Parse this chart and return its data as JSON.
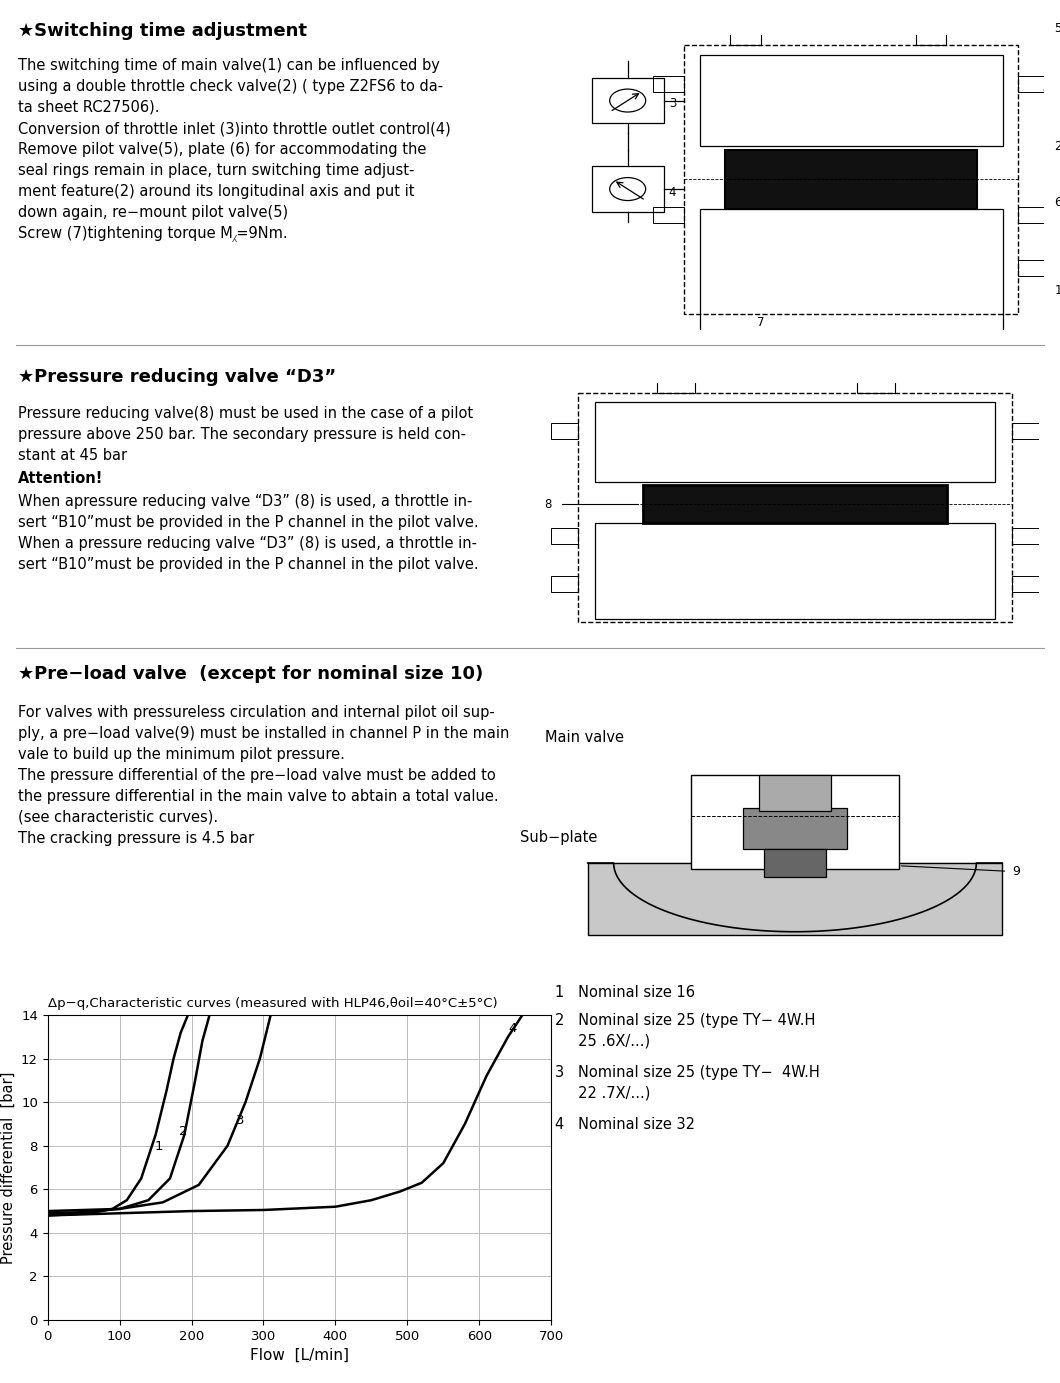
{
  "background_color": "#ffffff",
  "text_color": "#000000",
  "separator_color": "#999999",
  "curve_color": "#000000",
  "grid_color": "#bbbbbb",
  "section1_title": "★Switching time adjustment",
  "section1_body": [
    "The switching time of main valve(1) can be influenced by",
    "using a double throttle check valve(2) ( type Z2FS6 to da-",
    "ta sheet RC27506).",
    "Conversion of throttle inlet (3)into throttle outlet control(4)",
    "Remove pilot valve(5), plate (6) for accommodating the",
    "seal rings remain in place, turn switching time adjust-",
    "ment feature(2) around its longitudinal axis and put it",
    "down again, re−mount pilot valve(5)",
    "Screw (7)tightening torque M⁁=9Nm."
  ],
  "section2_title": "★Pressure reducing valve “D3”",
  "section2_body": [
    "Pressure reducing valve(8) must be used in the case of a pilot",
    "pressure above 250 bar. The secondary pressure is held con-",
    "stant at 45 bar"
  ],
  "section2_attention": "Attention!",
  "section2_attention_body": [
    "When apressure reducing valve “D3” (8) is used, a throttle in-",
    "sert “B10”must be provided in the P channel in the pilot valve.",
    "When a pressure reducing valve “D3” (8) is used, a throttle in-",
    "sert “B10”must be provided in the P channel in the pilot valve."
  ],
  "section3_title": "★Pre−load valve  (except for nominal size 10)",
  "section3_body": [
    "For valves with pressureless circulation and internal pilot oil sup-",
    "ply, a pre−load valve(9) must be installed in channel P in the main",
    "vale to build up the minimum pilot pressure.",
    "The pressure differential of the pre−load valve must be added to",
    "the pressure differential in the main valve to abtain a total value.",
    "(see characteristic curves).",
    "The cracking pressure is 4.5 bar"
  ],
  "chart_title": "Δp−q,Characteristic curves (measured with HLP46,θoil=40°C±5°C)",
  "xlabel": "Flow  [L/min]",
  "ylabel": "Pressure differential  [bar]",
  "xlim": [
    0,
    700
  ],
  "ylim": [
    0,
    14
  ],
  "xticks": [
    0,
    100,
    200,
    300,
    400,
    500,
    600,
    700
  ],
  "yticks": [
    0,
    2,
    4,
    6,
    8,
    10,
    12,
    14
  ],
  "legend_line1": "1   Nominal size 16",
  "legend_line2a": "2   Nominal size 25 (type TY− 4W.H",
  "legend_line2b": "     25 .6X/...)",
  "legend_line3a": "3   Nominal size 25 (type TY−  4W.H",
  "legend_line3b": "     22 .7X/...)",
  "legend_line4": "4   Nominal size 32",
  "curve1_x": [
    0,
    30,
    60,
    90,
    110,
    130,
    150,
    165,
    175,
    185,
    195
  ],
  "curve1_y": [
    4.8,
    4.85,
    4.9,
    5.1,
    5.5,
    6.5,
    8.5,
    10.5,
    12.0,
    13.2,
    14.0
  ],
  "curve2_x": [
    0,
    50,
    100,
    140,
    170,
    190,
    205,
    215,
    225
  ],
  "curve2_y": [
    4.9,
    4.95,
    5.1,
    5.5,
    6.5,
    8.5,
    11.0,
    12.8,
    14.0
  ],
  "curve3_x": [
    0,
    100,
    160,
    210,
    250,
    275,
    295,
    310
  ],
  "curve3_y": [
    5.0,
    5.1,
    5.4,
    6.2,
    8.0,
    10.0,
    12.0,
    14.0
  ],
  "curve4_x": [
    0,
    100,
    200,
    300,
    400,
    450,
    490,
    520,
    550,
    580,
    610,
    640,
    660
  ],
  "curve4_y": [
    4.8,
    4.9,
    5.0,
    5.05,
    5.2,
    5.5,
    5.9,
    6.3,
    7.2,
    9.0,
    11.2,
    13.0,
    14.0
  ]
}
